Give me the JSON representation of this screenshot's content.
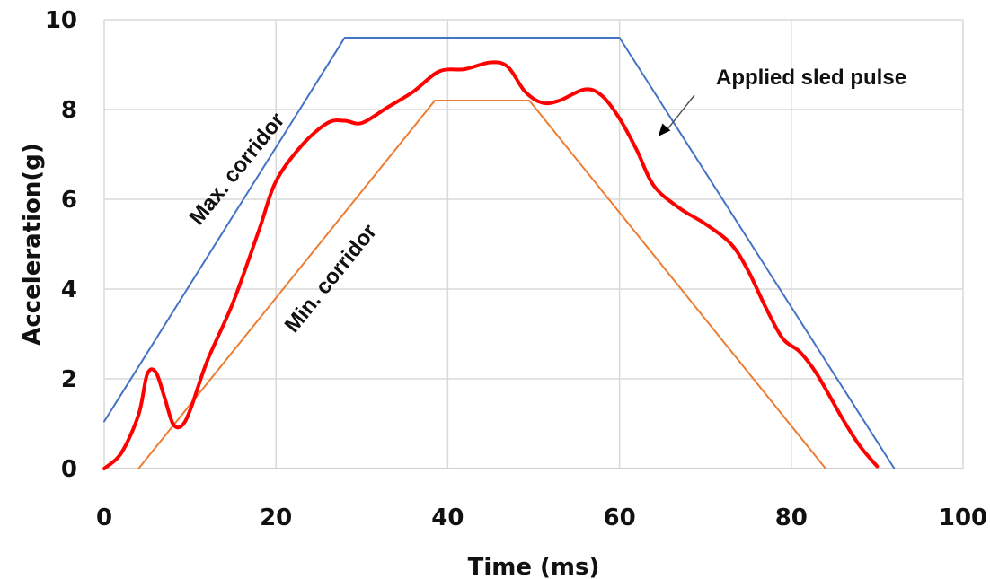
{
  "chart_data": {
    "type": "line",
    "title": "",
    "xlabel": "Time (ms)",
    "ylabel": "Acceleration(g)",
    "xlim": [
      0,
      100
    ],
    "ylim": [
      0,
      10
    ],
    "xticks": [
      0,
      20,
      40,
      60,
      80,
      100
    ],
    "yticks": [
      0,
      2,
      4,
      6,
      8,
      10
    ],
    "grid": true,
    "legend": "none",
    "series": [
      {
        "name": "Max. corridor",
        "color": "#4472c4",
        "points": [
          [
            0,
            1.05
          ],
          [
            28,
            9.6
          ],
          [
            60,
            9.6
          ],
          [
            92,
            0
          ]
        ]
      },
      {
        "name": "Min. corridor",
        "color": "#ed7d31",
        "points": [
          [
            4,
            0
          ],
          [
            38.5,
            8.2
          ],
          [
            49.5,
            8.2
          ],
          [
            84,
            0
          ]
        ]
      },
      {
        "name": "Applied sled pulse",
        "color": "#ff0000",
        "points": [
          [
            0,
            0
          ],
          [
            2,
            0.35
          ],
          [
            4,
            1.2
          ],
          [
            5,
            2.1
          ],
          [
            6,
            2.15
          ],
          [
            7,
            1.6
          ],
          [
            8,
            1.0
          ],
          [
            9,
            0.95
          ],
          [
            10,
            1.3
          ],
          [
            12,
            2.4
          ],
          [
            15,
            3.7
          ],
          [
            18,
            5.3
          ],
          [
            20,
            6.4
          ],
          [
            23,
            7.2
          ],
          [
            26,
            7.7
          ],
          [
            28,
            7.75
          ],
          [
            30,
            7.7
          ],
          [
            33,
            8.05
          ],
          [
            36,
            8.4
          ],
          [
            39,
            8.85
          ],
          [
            42,
            8.9
          ],
          [
            45,
            9.05
          ],
          [
            47,
            8.95
          ],
          [
            49,
            8.4
          ],
          [
            51,
            8.15
          ],
          [
            53,
            8.2
          ],
          [
            56,
            8.45
          ],
          [
            58,
            8.3
          ],
          [
            60,
            7.8
          ],
          [
            62,
            7.1
          ],
          [
            64,
            6.3
          ],
          [
            67,
            5.8
          ],
          [
            70,
            5.45
          ],
          [
            73,
            5.0
          ],
          [
            75,
            4.4
          ],
          [
            77,
            3.6
          ],
          [
            79,
            2.9
          ],
          [
            81,
            2.6
          ],
          [
            83,
            2.1
          ],
          [
            86,
            1.1
          ],
          [
            88,
            0.5
          ],
          [
            90,
            0.05
          ]
        ]
      }
    ],
    "annotations": [
      {
        "text": "Max. corridor",
        "series": "Max. corridor"
      },
      {
        "text": "Min. corridor",
        "series": "Min. corridor"
      },
      {
        "text": "Applied sled pulse",
        "series": "Applied sled pulse",
        "arrow_to": [
          64.5,
          7.4
        ]
      }
    ]
  }
}
